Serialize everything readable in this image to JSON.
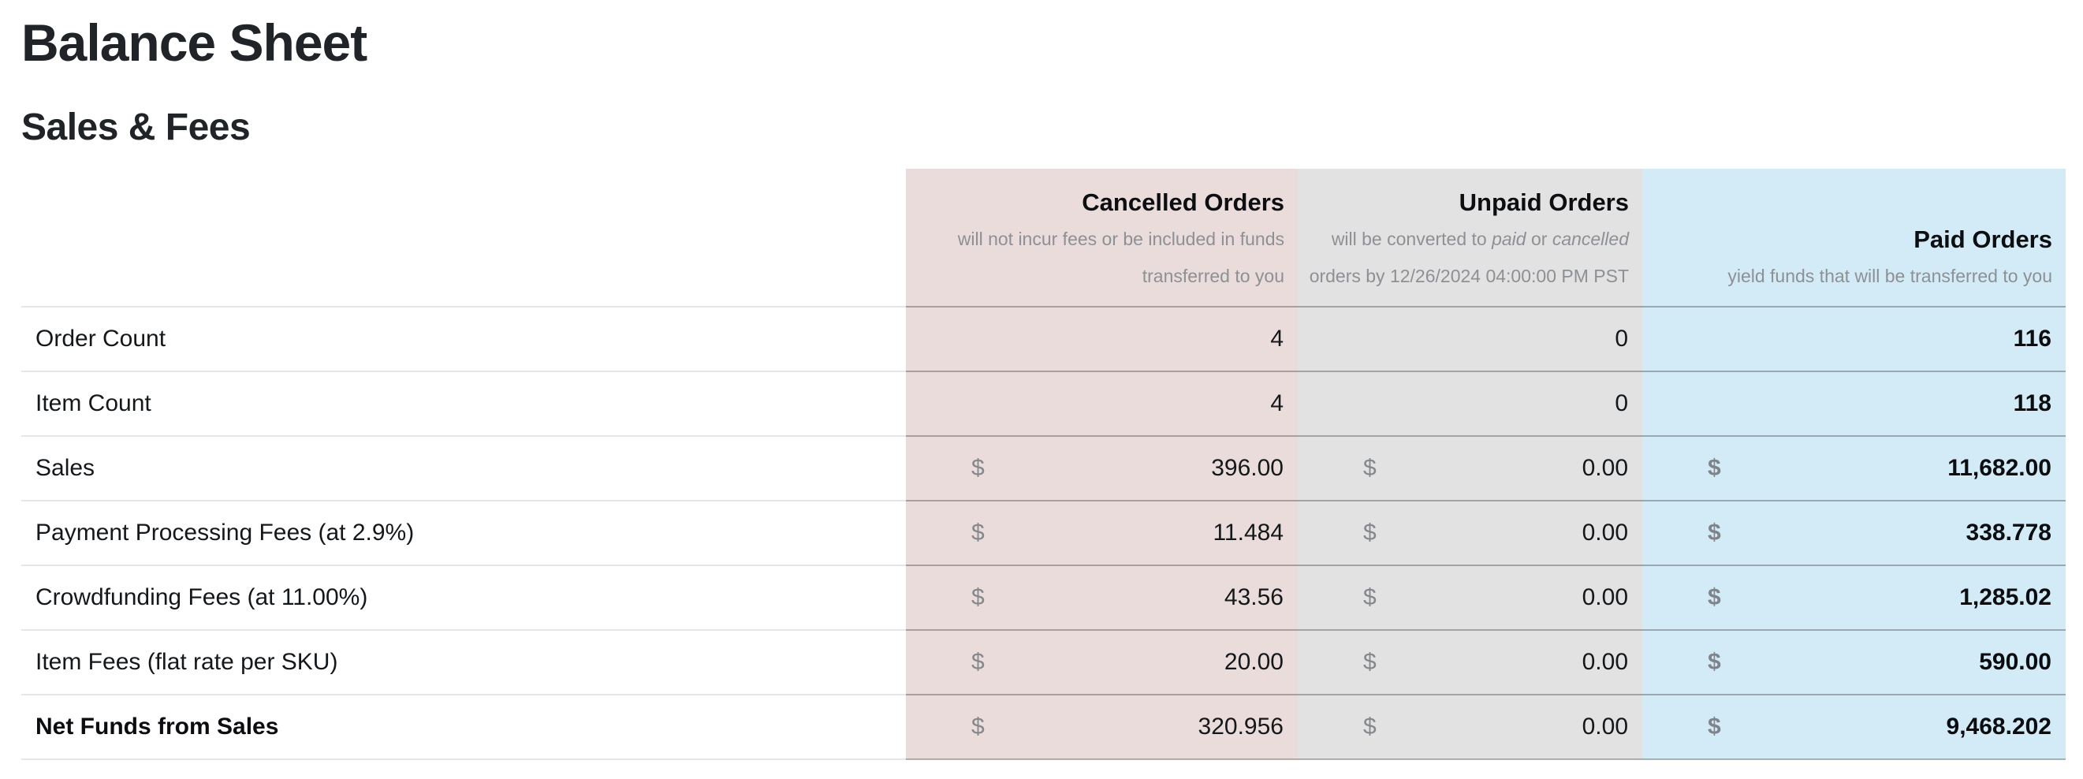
{
  "page": {
    "title": "Balance Sheet",
    "subtitle": "Sales & Fees"
  },
  "table": {
    "currency_symbol": "$",
    "columns": [
      {
        "key": "cancelled",
        "label": "Cancelled Orders",
        "emphasized": false,
        "description_lines": [
          [
            {
              "t": "will not incur fees or be included in funds"
            }
          ],
          [
            {
              "t": "transferred to you"
            }
          ]
        ]
      },
      {
        "key": "unpaid",
        "label": "Unpaid Orders",
        "emphasized": false,
        "description_lines": [
          [
            {
              "t": "will be converted to "
            },
            {
              "t": "paid",
              "i": true
            },
            {
              "t": " or "
            },
            {
              "t": "cancelled",
              "i": true
            }
          ],
          [
            {
              "t": "orders by 12/26/2024 04:00:00 PM PST"
            }
          ]
        ]
      },
      {
        "key": "paid",
        "label": "Paid Orders",
        "emphasized": true,
        "description_lines": [
          [
            {
              "t": "yield funds that will be transferred to you"
            }
          ]
        ]
      }
    ],
    "rows": [
      {
        "label": "Order Count",
        "type": "count",
        "bold_label": false,
        "values": {
          "cancelled": "4",
          "unpaid": "0",
          "paid": "116"
        }
      },
      {
        "label": "Item Count",
        "type": "count",
        "bold_label": false,
        "values": {
          "cancelled": "4",
          "unpaid": "0",
          "paid": "118"
        }
      },
      {
        "label": "Sales",
        "type": "money",
        "bold_label": false,
        "values": {
          "cancelled": "396.00",
          "unpaid": "0.00",
          "paid": "11,682.00"
        }
      },
      {
        "label": "Payment Processing Fees (at 2.9%)",
        "type": "money",
        "bold_label": false,
        "values": {
          "cancelled": "11.484",
          "unpaid": "0.00",
          "paid": "338.778"
        }
      },
      {
        "label": "Crowdfunding Fees (at 11.00%)",
        "type": "money",
        "bold_label": false,
        "values": {
          "cancelled": "43.56",
          "unpaid": "0.00",
          "paid": "1,285.02"
        }
      },
      {
        "label": "Item Fees (flat rate per SKU)",
        "type": "money",
        "bold_label": false,
        "values": {
          "cancelled": "20.00",
          "unpaid": "0.00",
          "paid": "590.00"
        }
      },
      {
        "label": "Net Funds from Sales",
        "type": "money",
        "bold_label": true,
        "values": {
          "cancelled": "320.956",
          "unpaid": "0.00",
          "paid": "9,468.202"
        }
      }
    ]
  },
  "colors": {
    "cancelled_bg": "#eadcda",
    "unpaid_bg": "#e2e2e3",
    "paid_bg": "#d3ebf6",
    "row_border_on_color": "rgba(0,0,0,0.28)",
    "row_border_on_white": "#e4e6ea",
    "muted_text": "#8d9094",
    "currency_text": "#84878b",
    "heading_text": "#202327",
    "body_text": "#15181b"
  }
}
